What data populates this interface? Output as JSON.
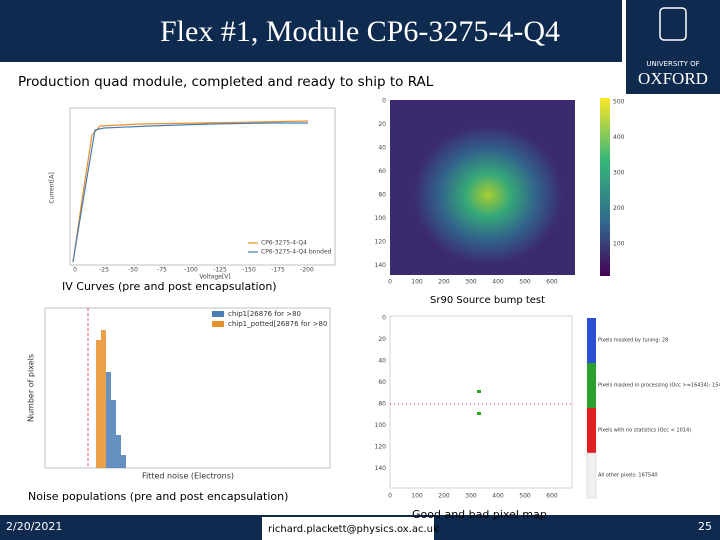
{
  "header": {
    "title": "Flex #1, Module CP6-3275-4-Q4",
    "logo": {
      "line1": "UNIVERSITY OF",
      "line2": "OXFORD"
    }
  },
  "subtitle": "Production quad module, completed and ready to ship to RAL",
  "figures": {
    "iv": {
      "caption": "IV Curves (pre and post encapsulation)",
      "x_label": "Voltage[V]",
      "y_label": "Current[A]",
      "x_ticks": [
        "0",
        "-25",
        "-50",
        "-75",
        "-100",
        "-125",
        "-150",
        "-175",
        "-200"
      ],
      "legend": [
        "CP6-3275-4-Q4",
        "CP6-3275-4-Q4 bonded"
      ]
    },
    "source": {
      "caption": "Sr90 Source bump test",
      "x_ticks": [
        "0",
        "100",
        "200",
        "300",
        "400",
        "500",
        "600"
      ],
      "y_ticks": [
        "0",
        "20",
        "40",
        "60",
        "80",
        "100",
        "120",
        "140"
      ],
      "colorbar_ticks": [
        "500",
        "400",
        "300",
        "200",
        "100"
      ]
    },
    "noise": {
      "caption": "Noise populations (pre and post encapsulation)",
      "y_label": "Number of pixels",
      "x_label": "Fitted noise (Electrons)",
      "legend": [
        "chip1[26876 for >80",
        "chip1_potted[26876 for >80"
      ]
    },
    "pixel_map": {
      "caption": "Good and bad pixel map",
      "x_ticks": [
        "0",
        "100",
        "200",
        "300",
        "400",
        "500",
        "600"
      ],
      "y_ticks": [
        "0",
        "20",
        "40",
        "60",
        "80",
        "100",
        "120",
        "140"
      ],
      "legend": [
        "Pixels masked by tuning: 28",
        "Pixels masked in processing (Occ >=16434): 154",
        "Pixels with no statistics (Occ < 1014)",
        "All other pixels: 167540"
      ]
    }
  },
  "footer": {
    "date": "2/20/2021",
    "email": "richard.plackett@physics.ox.ac.uk",
    "page": "25"
  }
}
